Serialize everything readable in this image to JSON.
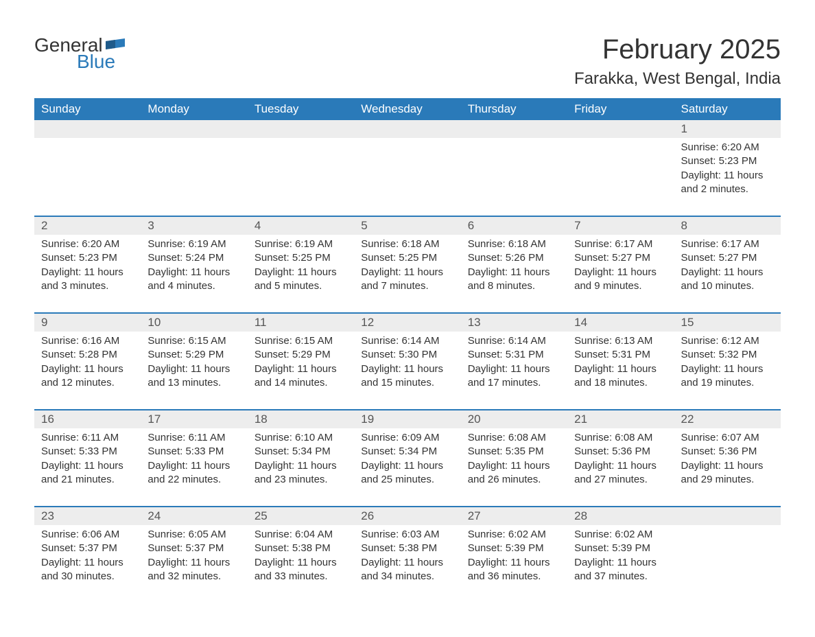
{
  "brand": {
    "text1": "General",
    "text2": "Blue",
    "flag_color": "#2a7ab9"
  },
  "title": "February 2025",
  "location": "Farakka, West Bengal, India",
  "colors": {
    "header_bg": "#2a7ab9",
    "header_text": "#ffffff",
    "daynum_bg": "#ededed",
    "daynum_text": "#555555",
    "body_text": "#333333",
    "row_border": "#2a7ab9",
    "page_bg": "#ffffff"
  },
  "fonts": {
    "title_size": 40,
    "location_size": 24,
    "dow_size": 17,
    "daynum_size": 17,
    "data_size": 15
  },
  "days_of_week": [
    "Sunday",
    "Monday",
    "Tuesday",
    "Wednesday",
    "Thursday",
    "Friday",
    "Saturday"
  ],
  "labels": {
    "sunrise": "Sunrise:",
    "sunset": "Sunset:",
    "daylight_prefix": "Daylight:",
    "daylight_unit_hours": "hours",
    "daylight_and": "and",
    "daylight_unit_minutes": "minutes."
  },
  "weeks": [
    [
      null,
      null,
      null,
      null,
      null,
      null,
      {
        "n": 1,
        "sr": "6:20 AM",
        "ss": "5:23 PM",
        "dh": 11,
        "dm": 2
      }
    ],
    [
      {
        "n": 2,
        "sr": "6:20 AM",
        "ss": "5:23 PM",
        "dh": 11,
        "dm": 3
      },
      {
        "n": 3,
        "sr": "6:19 AM",
        "ss": "5:24 PM",
        "dh": 11,
        "dm": 4
      },
      {
        "n": 4,
        "sr": "6:19 AM",
        "ss": "5:25 PM",
        "dh": 11,
        "dm": 5
      },
      {
        "n": 5,
        "sr": "6:18 AM",
        "ss": "5:25 PM",
        "dh": 11,
        "dm": 7
      },
      {
        "n": 6,
        "sr": "6:18 AM",
        "ss": "5:26 PM",
        "dh": 11,
        "dm": 8
      },
      {
        "n": 7,
        "sr": "6:17 AM",
        "ss": "5:27 PM",
        "dh": 11,
        "dm": 9
      },
      {
        "n": 8,
        "sr": "6:17 AM",
        "ss": "5:27 PM",
        "dh": 11,
        "dm": 10
      }
    ],
    [
      {
        "n": 9,
        "sr": "6:16 AM",
        "ss": "5:28 PM",
        "dh": 11,
        "dm": 12
      },
      {
        "n": 10,
        "sr": "6:15 AM",
        "ss": "5:29 PM",
        "dh": 11,
        "dm": 13
      },
      {
        "n": 11,
        "sr": "6:15 AM",
        "ss": "5:29 PM",
        "dh": 11,
        "dm": 14
      },
      {
        "n": 12,
        "sr": "6:14 AM",
        "ss": "5:30 PM",
        "dh": 11,
        "dm": 15
      },
      {
        "n": 13,
        "sr": "6:14 AM",
        "ss": "5:31 PM",
        "dh": 11,
        "dm": 17
      },
      {
        "n": 14,
        "sr": "6:13 AM",
        "ss": "5:31 PM",
        "dh": 11,
        "dm": 18
      },
      {
        "n": 15,
        "sr": "6:12 AM",
        "ss": "5:32 PM",
        "dh": 11,
        "dm": 19
      }
    ],
    [
      {
        "n": 16,
        "sr": "6:11 AM",
        "ss": "5:33 PM",
        "dh": 11,
        "dm": 21
      },
      {
        "n": 17,
        "sr": "6:11 AM",
        "ss": "5:33 PM",
        "dh": 11,
        "dm": 22
      },
      {
        "n": 18,
        "sr": "6:10 AM",
        "ss": "5:34 PM",
        "dh": 11,
        "dm": 23
      },
      {
        "n": 19,
        "sr": "6:09 AM",
        "ss": "5:34 PM",
        "dh": 11,
        "dm": 25
      },
      {
        "n": 20,
        "sr": "6:08 AM",
        "ss": "5:35 PM",
        "dh": 11,
        "dm": 26
      },
      {
        "n": 21,
        "sr": "6:08 AM",
        "ss": "5:36 PM",
        "dh": 11,
        "dm": 27
      },
      {
        "n": 22,
        "sr": "6:07 AM",
        "ss": "5:36 PM",
        "dh": 11,
        "dm": 29
      }
    ],
    [
      {
        "n": 23,
        "sr": "6:06 AM",
        "ss": "5:37 PM",
        "dh": 11,
        "dm": 30
      },
      {
        "n": 24,
        "sr": "6:05 AM",
        "ss": "5:37 PM",
        "dh": 11,
        "dm": 32
      },
      {
        "n": 25,
        "sr": "6:04 AM",
        "ss": "5:38 PM",
        "dh": 11,
        "dm": 33
      },
      {
        "n": 26,
        "sr": "6:03 AM",
        "ss": "5:38 PM",
        "dh": 11,
        "dm": 34
      },
      {
        "n": 27,
        "sr": "6:02 AM",
        "ss": "5:39 PM",
        "dh": 11,
        "dm": 36
      },
      {
        "n": 28,
        "sr": "6:02 AM",
        "ss": "5:39 PM",
        "dh": 11,
        "dm": 37
      },
      null
    ]
  ]
}
